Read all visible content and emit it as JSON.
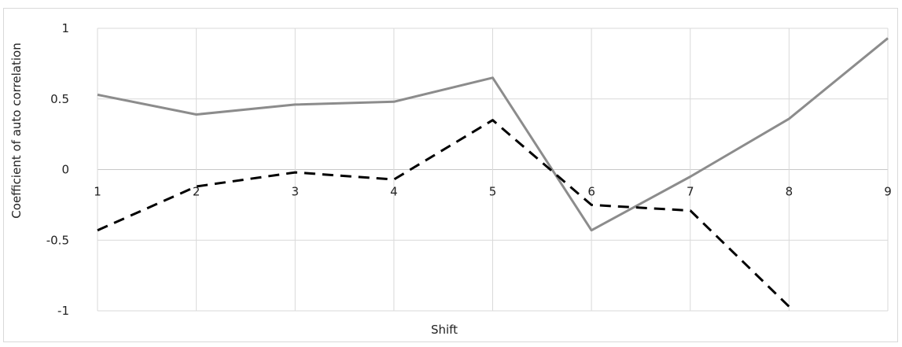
{
  "chart_data": {
    "type": "line",
    "title": "",
    "xlabel": "Shift",
    "ylabel": "Coefficient of auto correlation",
    "ylim": [
      -1,
      1
    ],
    "x": [
      1,
      2,
      3,
      4,
      5,
      6,
      7,
      8,
      9
    ],
    "yticks": [
      1,
      0.5,
      0,
      -0.5,
      -1
    ],
    "ytick_labels": [
      "1",
      "0.5",
      "0",
      "-0.5",
      "-1"
    ],
    "grid": true,
    "legend": "none",
    "series": [
      {
        "style": "solid",
        "color": "#8c8c8c",
        "values": [
          0.53,
          0.39,
          0.46,
          0.48,
          0.65,
          -0.43,
          -0.05,
          0.36,
          0.93
        ]
      },
      {
        "style": "dashed",
        "color": "#000000",
        "values": [
          -0.43,
          -0.12,
          -0.02,
          -0.07,
          0.35,
          -0.25,
          -0.29,
          -0.97,
          null
        ]
      }
    ]
  }
}
